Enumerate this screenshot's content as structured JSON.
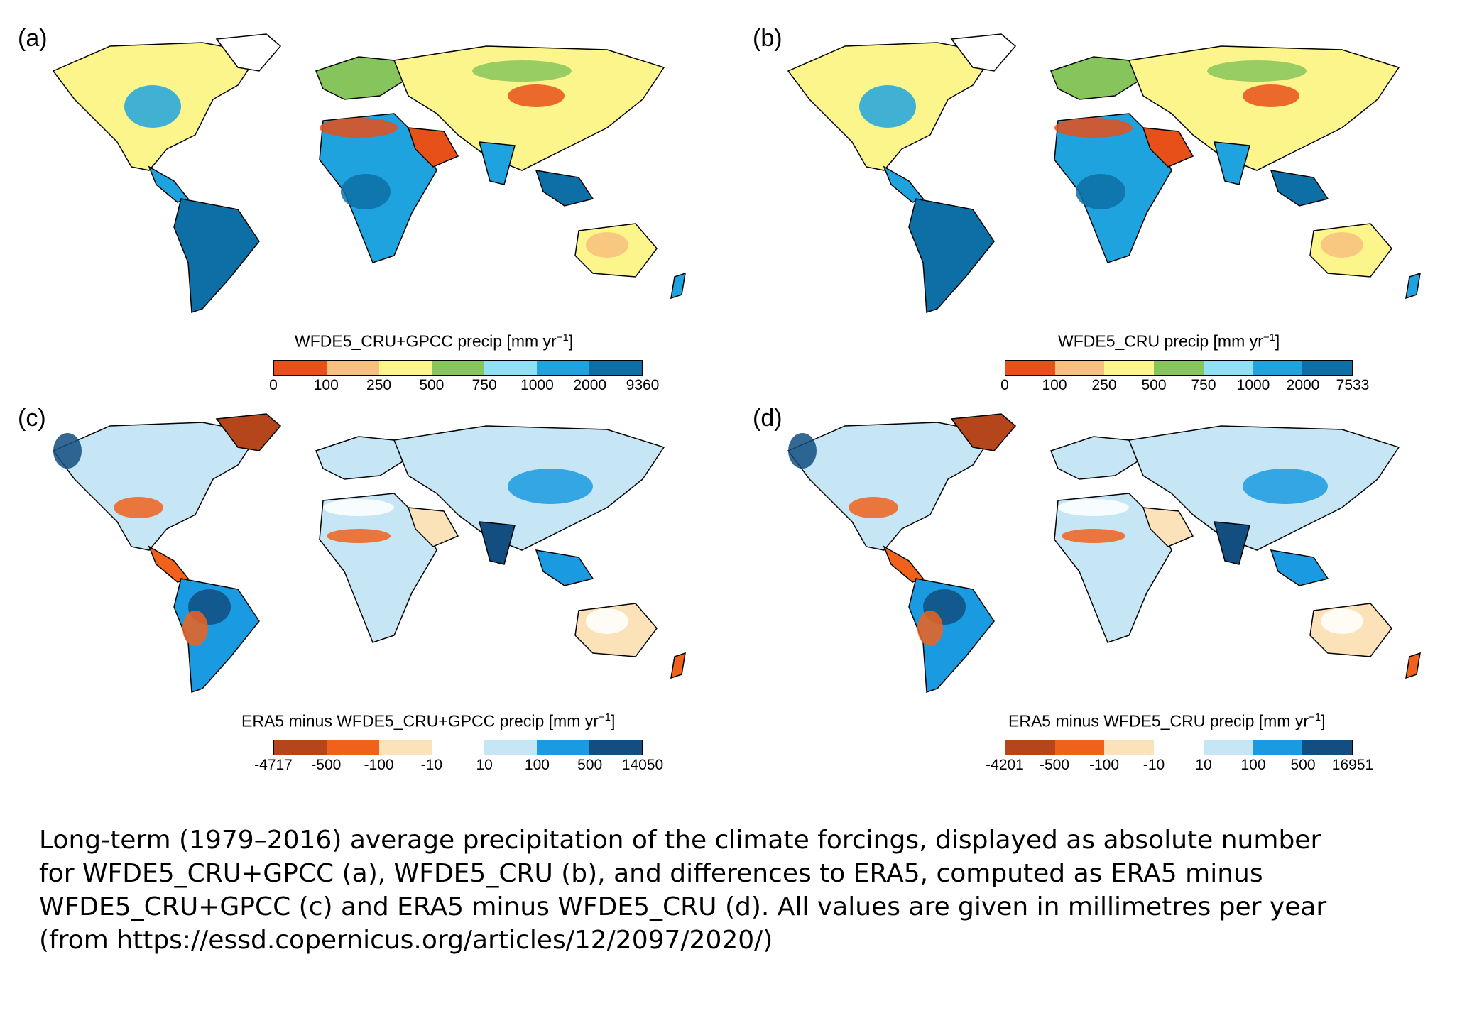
{
  "panels": [
    {
      "id": "a",
      "label": "(a)",
      "kind": "absolute",
      "title_main": "WFDE5_CRU+GPCC precip [mm yr",
      "title_sup": "−1",
      "title_end": "]",
      "ticks": [
        "0",
        "100",
        "250",
        "500",
        "750",
        "1000",
        "2000",
        "9360"
      ],
      "colors": [
        "#e8501a",
        "#f7c07e",
        "#fbf58c",
        "#86c55c",
        "#8fdff5",
        "#1ea3df",
        "#0e6fa6"
      ]
    },
    {
      "id": "b",
      "label": "(b)",
      "kind": "absolute",
      "title_main": "WFDE5_CRU precip [mm yr",
      "title_sup": "−1",
      "title_end": "]",
      "ticks": [
        "0",
        "100",
        "250",
        "500",
        "750",
        "1000",
        "2000",
        "7533"
      ],
      "colors": [
        "#e8501a",
        "#f7c07e",
        "#fbf58c",
        "#86c55c",
        "#8fdff5",
        "#1ea3df",
        "#0e6fa6"
      ]
    },
    {
      "id": "c",
      "label": "(c)",
      "kind": "difference",
      "title_main": "ERA5 minus WFDE5_CRU+GPCC precip [mm yr",
      "title_sup": "−1",
      "title_end": "]",
      "ticks": [
        "-4717",
        "-500",
        "-100",
        "-10",
        "10",
        "100",
        "500",
        "14050"
      ],
      "colors": [
        "#b5461c",
        "#f0611c",
        "#fce2b8",
        "#ffffff",
        "#c6e6f5",
        "#1a9ae0",
        "#124e80"
      ]
    },
    {
      "id": "d",
      "label": "(d)",
      "kind": "difference",
      "title_main": "ERA5 minus WFDE5_CRU precip [mm yr",
      "title_sup": "−1",
      "title_end": "]",
      "ticks": [
        "-4201",
        "-500",
        "-100",
        "-10",
        "10",
        "100",
        "500",
        "16951"
      ],
      "colors": [
        "#b5461c",
        "#f0611c",
        "#fce2b8",
        "#ffffff",
        "#c6e6f5",
        "#1a9ae0",
        "#124e80"
      ]
    }
  ],
  "caption": {
    "lines": [
      "Long-term (1979–2016) average precipitation of the climate forcings, displayed as absolute number",
      "for WFDE5_CRU+GPCC (a), WFDE5_CRU (b), and differences to ERA5, computed as ERA5 minus",
      "WFDE5_CRU+GPCC (c) and ERA5 minus WFDE5_CRU (d). All values are given in millimetres per year",
      "(from https://essd.copernicus.org/articles/12/2097/2020/)"
    ]
  }
}
